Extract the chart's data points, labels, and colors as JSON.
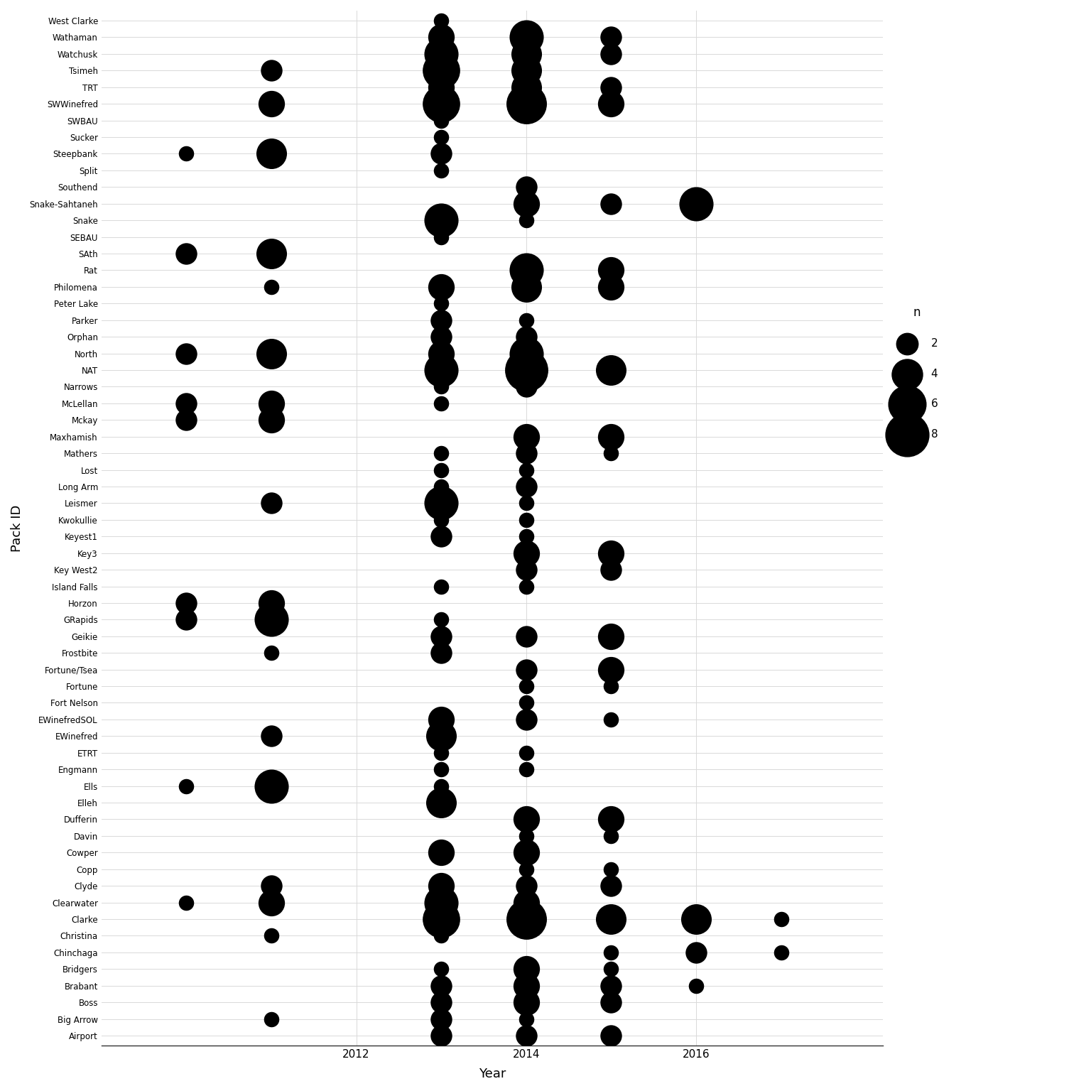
{
  "packs": [
    "West Clarke",
    "Wathaman",
    "Watchusk",
    "Tsimeh",
    "TRT",
    "SWWinefred",
    "SWBAU",
    "Sucker",
    "Steepbank",
    "Split",
    "Southend",
    "Snake-Sahtaneh",
    "Snake",
    "SEBAU",
    "SAth",
    "Rat",
    "Philomena",
    "Peter Lake",
    "Parker",
    "Orphan",
    "North",
    "NAT",
    "Narrows",
    "McLellan",
    "Mckay",
    "Maxhamish",
    "Mathers",
    "Lost",
    "Long Arm",
    "Leismer",
    "Kwokullie",
    "Keyest1",
    "Key3",
    "Key West2",
    "Island Falls",
    "Horzon",
    "GRapids",
    "Geikie",
    "Frostbite",
    "Fortune/Tsea",
    "Fortune",
    "Fort Nelson",
    "EWinefredSOL",
    "EWinefred",
    "ETRT",
    "Engmann",
    "Ells",
    "Elleh",
    "Dufferin",
    "Davin",
    "Cowper",
    "Copp",
    "Clyde",
    "Clearwater",
    "Clarke",
    "Christina",
    "Chinchaga",
    "Bridgers",
    "Brabant",
    "Boss",
    "Big Arrow",
    "Airport"
  ],
  "observations": [
    {
      "pack": "West Clarke",
      "year": 2013,
      "n": 1
    },
    {
      "pack": "Wathaman",
      "year": 2013,
      "n": 3
    },
    {
      "pack": "Wathaman",
      "year": 2014,
      "n": 5
    },
    {
      "pack": "Wathaman",
      "year": 2015,
      "n": 2
    },
    {
      "pack": "Watchusk",
      "year": 2013,
      "n": 5
    },
    {
      "pack": "Watchusk",
      "year": 2014,
      "n": 4
    },
    {
      "pack": "Watchusk",
      "year": 2015,
      "n": 2
    },
    {
      "pack": "Tsimeh",
      "year": 2011,
      "n": 2
    },
    {
      "pack": "Tsimeh",
      "year": 2013,
      "n": 6
    },
    {
      "pack": "Tsimeh",
      "year": 2014,
      "n": 4
    },
    {
      "pack": "TRT",
      "year": 2013,
      "n": 3
    },
    {
      "pack": "TRT",
      "year": 2014,
      "n": 4
    },
    {
      "pack": "TRT",
      "year": 2015,
      "n": 2
    },
    {
      "pack": "SWWinefred",
      "year": 2011,
      "n": 3
    },
    {
      "pack": "SWWinefred",
      "year": 2013,
      "n": 6
    },
    {
      "pack": "SWWinefred",
      "year": 2014,
      "n": 7
    },
    {
      "pack": "SWWinefred",
      "year": 2015,
      "n": 3
    },
    {
      "pack": "SWBAU",
      "year": 2013,
      "n": 1
    },
    {
      "pack": "Sucker",
      "year": 2013,
      "n": 1
    },
    {
      "pack": "Steepbank",
      "year": 2010,
      "n": 1
    },
    {
      "pack": "Steepbank",
      "year": 2011,
      "n": 4
    },
    {
      "pack": "Steepbank",
      "year": 2013,
      "n": 2
    },
    {
      "pack": "Split",
      "year": 2013,
      "n": 1
    },
    {
      "pack": "Southend",
      "year": 2014,
      "n": 2
    },
    {
      "pack": "Snake-Sahtaneh",
      "year": 2014,
      "n": 3
    },
    {
      "pack": "Snake-Sahtaneh",
      "year": 2015,
      "n": 2
    },
    {
      "pack": "Snake-Sahtaneh",
      "year": 2016,
      "n": 5
    },
    {
      "pack": "Snake",
      "year": 2013,
      "n": 5
    },
    {
      "pack": "Snake",
      "year": 2014,
      "n": 1
    },
    {
      "pack": "SEBAU",
      "year": 2013,
      "n": 1
    },
    {
      "pack": "SAth",
      "year": 2010,
      "n": 2
    },
    {
      "pack": "SAth",
      "year": 2011,
      "n": 4
    },
    {
      "pack": "Rat",
      "year": 2014,
      "n": 5
    },
    {
      "pack": "Rat",
      "year": 2015,
      "n": 3
    },
    {
      "pack": "Philomena",
      "year": 2011,
      "n": 1
    },
    {
      "pack": "Philomena",
      "year": 2013,
      "n": 3
    },
    {
      "pack": "Philomena",
      "year": 2014,
      "n": 4
    },
    {
      "pack": "Philomena",
      "year": 2015,
      "n": 3
    },
    {
      "pack": "Peter Lake",
      "year": 2013,
      "n": 1
    },
    {
      "pack": "Parker",
      "year": 2013,
      "n": 2
    },
    {
      "pack": "Parker",
      "year": 2014,
      "n": 1
    },
    {
      "pack": "Orphan",
      "year": 2013,
      "n": 2
    },
    {
      "pack": "Orphan",
      "year": 2014,
      "n": 2
    },
    {
      "pack": "North",
      "year": 2010,
      "n": 2
    },
    {
      "pack": "North",
      "year": 2011,
      "n": 4
    },
    {
      "pack": "North",
      "year": 2013,
      "n": 3
    },
    {
      "pack": "North",
      "year": 2014,
      "n": 5
    },
    {
      "pack": "NAT",
      "year": 2013,
      "n": 5
    },
    {
      "pack": "NAT",
      "year": 2014,
      "n": 8
    },
    {
      "pack": "NAT",
      "year": 2015,
      "n": 4
    },
    {
      "pack": "Narrows",
      "year": 2013,
      "n": 1
    },
    {
      "pack": "Narrows",
      "year": 2014,
      "n": 2
    },
    {
      "pack": "McLellan",
      "year": 2010,
      "n": 2
    },
    {
      "pack": "McLellan",
      "year": 2011,
      "n": 3
    },
    {
      "pack": "McLellan",
      "year": 2013,
      "n": 1
    },
    {
      "pack": "Mckay",
      "year": 2010,
      "n": 2
    },
    {
      "pack": "Mckay",
      "year": 2011,
      "n": 3
    },
    {
      "pack": "Maxhamish",
      "year": 2014,
      "n": 3
    },
    {
      "pack": "Maxhamish",
      "year": 2015,
      "n": 3
    },
    {
      "pack": "Mathers",
      "year": 2013,
      "n": 1
    },
    {
      "pack": "Mathers",
      "year": 2014,
      "n": 2
    },
    {
      "pack": "Mathers",
      "year": 2015,
      "n": 1
    },
    {
      "pack": "Lost",
      "year": 2013,
      "n": 1
    },
    {
      "pack": "Lost",
      "year": 2014,
      "n": 1
    },
    {
      "pack": "Long Arm",
      "year": 2013,
      "n": 1
    },
    {
      "pack": "Long Arm",
      "year": 2014,
      "n": 2
    },
    {
      "pack": "Leismer",
      "year": 2011,
      "n": 2
    },
    {
      "pack": "Leismer",
      "year": 2013,
      "n": 5
    },
    {
      "pack": "Leismer",
      "year": 2014,
      "n": 1
    },
    {
      "pack": "Kwokullie",
      "year": 2013,
      "n": 1
    },
    {
      "pack": "Kwokullie",
      "year": 2014,
      "n": 1
    },
    {
      "pack": "Keyest1",
      "year": 2013,
      "n": 2
    },
    {
      "pack": "Keyest1",
      "year": 2014,
      "n": 1
    },
    {
      "pack": "Key3",
      "year": 2014,
      "n": 3
    },
    {
      "pack": "Key3",
      "year": 2015,
      "n": 3
    },
    {
      "pack": "Key West2",
      "year": 2014,
      "n": 2
    },
    {
      "pack": "Key West2",
      "year": 2015,
      "n": 2
    },
    {
      "pack": "Island Falls",
      "year": 2013,
      "n": 1
    },
    {
      "pack": "Island Falls",
      "year": 2014,
      "n": 1
    },
    {
      "pack": "Horzon",
      "year": 2010,
      "n": 2
    },
    {
      "pack": "Horzon",
      "year": 2011,
      "n": 3
    },
    {
      "pack": "GRapids",
      "year": 2010,
      "n": 2
    },
    {
      "pack": "GRapids",
      "year": 2011,
      "n": 5
    },
    {
      "pack": "GRapids",
      "year": 2013,
      "n": 1
    },
    {
      "pack": "Geikie",
      "year": 2013,
      "n": 2
    },
    {
      "pack": "Geikie",
      "year": 2014,
      "n": 2
    },
    {
      "pack": "Geikie",
      "year": 2015,
      "n": 3
    },
    {
      "pack": "Frostbite",
      "year": 2011,
      "n": 1
    },
    {
      "pack": "Frostbite",
      "year": 2013,
      "n": 2
    },
    {
      "pack": "Fortune/Tsea",
      "year": 2014,
      "n": 2
    },
    {
      "pack": "Fortune/Tsea",
      "year": 2015,
      "n": 3
    },
    {
      "pack": "Fortune",
      "year": 2014,
      "n": 1
    },
    {
      "pack": "Fortune",
      "year": 2015,
      "n": 1
    },
    {
      "pack": "Fort Nelson",
      "year": 2014,
      "n": 1
    },
    {
      "pack": "EWinefredSOL",
      "year": 2013,
      "n": 3
    },
    {
      "pack": "EWinefredSOL",
      "year": 2014,
      "n": 2
    },
    {
      "pack": "EWinefredSOL",
      "year": 2015,
      "n": 1
    },
    {
      "pack": "EWinefred",
      "year": 2011,
      "n": 2
    },
    {
      "pack": "EWinefred",
      "year": 2013,
      "n": 4
    },
    {
      "pack": "ETRT",
      "year": 2013,
      "n": 1
    },
    {
      "pack": "ETRT",
      "year": 2014,
      "n": 1
    },
    {
      "pack": "Engmann",
      "year": 2013,
      "n": 1
    },
    {
      "pack": "Engmann",
      "year": 2014,
      "n": 1
    },
    {
      "pack": "Ells",
      "year": 2010,
      "n": 1
    },
    {
      "pack": "Ells",
      "year": 2011,
      "n": 5
    },
    {
      "pack": "Ells",
      "year": 2013,
      "n": 1
    },
    {
      "pack": "Elleh",
      "year": 2013,
      "n": 4
    },
    {
      "pack": "Dufferin",
      "year": 2014,
      "n": 3
    },
    {
      "pack": "Dufferin",
      "year": 2015,
      "n": 3
    },
    {
      "pack": "Davin",
      "year": 2014,
      "n": 1
    },
    {
      "pack": "Davin",
      "year": 2015,
      "n": 1
    },
    {
      "pack": "Cowper",
      "year": 2013,
      "n": 3
    },
    {
      "pack": "Cowper",
      "year": 2014,
      "n": 3
    },
    {
      "pack": "Copp",
      "year": 2014,
      "n": 1
    },
    {
      "pack": "Copp",
      "year": 2015,
      "n": 1
    },
    {
      "pack": "Clyde",
      "year": 2011,
      "n": 2
    },
    {
      "pack": "Clyde",
      "year": 2013,
      "n": 3
    },
    {
      "pack": "Clyde",
      "year": 2014,
      "n": 2
    },
    {
      "pack": "Clyde",
      "year": 2015,
      "n": 2
    },
    {
      "pack": "Clearwater",
      "year": 2010,
      "n": 1
    },
    {
      "pack": "Clearwater",
      "year": 2011,
      "n": 3
    },
    {
      "pack": "Clearwater",
      "year": 2013,
      "n": 5
    },
    {
      "pack": "Clearwater",
      "year": 2014,
      "n": 3
    },
    {
      "pack": "Clarke",
      "year": 2013,
      "n": 6
    },
    {
      "pack": "Clarke",
      "year": 2014,
      "n": 7
    },
    {
      "pack": "Clarke",
      "year": 2015,
      "n": 4
    },
    {
      "pack": "Clarke",
      "year": 2016,
      "n": 4
    },
    {
      "pack": "Clarke",
      "year": 2017,
      "n": 1
    },
    {
      "pack": "Christina",
      "year": 2011,
      "n": 1
    },
    {
      "pack": "Christina",
      "year": 2013,
      "n": 1
    },
    {
      "pack": "Chinchaga",
      "year": 2015,
      "n": 1
    },
    {
      "pack": "Chinchaga",
      "year": 2016,
      "n": 2
    },
    {
      "pack": "Chinchaga",
      "year": 2017,
      "n": 1
    },
    {
      "pack": "Bridgers",
      "year": 2013,
      "n": 1
    },
    {
      "pack": "Bridgers",
      "year": 2014,
      "n": 3
    },
    {
      "pack": "Bridgers",
      "year": 2015,
      "n": 1
    },
    {
      "pack": "Brabant",
      "year": 2013,
      "n": 2
    },
    {
      "pack": "Brabant",
      "year": 2014,
      "n": 3
    },
    {
      "pack": "Brabant",
      "year": 2015,
      "n": 2
    },
    {
      "pack": "Brabant",
      "year": 2016,
      "n": 1
    },
    {
      "pack": "Boss",
      "year": 2013,
      "n": 2
    },
    {
      "pack": "Boss",
      "year": 2014,
      "n": 3
    },
    {
      "pack": "Boss",
      "year": 2015,
      "n": 2
    },
    {
      "pack": "Big Arrow",
      "year": 2011,
      "n": 1
    },
    {
      "pack": "Big Arrow",
      "year": 2013,
      "n": 2
    },
    {
      "pack": "Big Arrow",
      "year": 2014,
      "n": 1
    },
    {
      "pack": "Airport",
      "year": 2013,
      "n": 2
    },
    {
      "pack": "Airport",
      "year": 2014,
      "n": 2
    },
    {
      "pack": "Airport",
      "year": 2015,
      "n": 2
    }
  ],
  "legend_values": [
    2,
    4,
    6,
    8
  ],
  "xlabel": "Year",
  "ylabel": "Pack ID",
  "legend_title": "n",
  "bg_color": "#ffffff",
  "grid_color": "#d9d9d9",
  "dot_color": "#000000",
  "xlim": [
    2009.0,
    2018.2
  ],
  "xticks": [
    2012,
    2014,
    2016
  ],
  "base_size": 30
}
